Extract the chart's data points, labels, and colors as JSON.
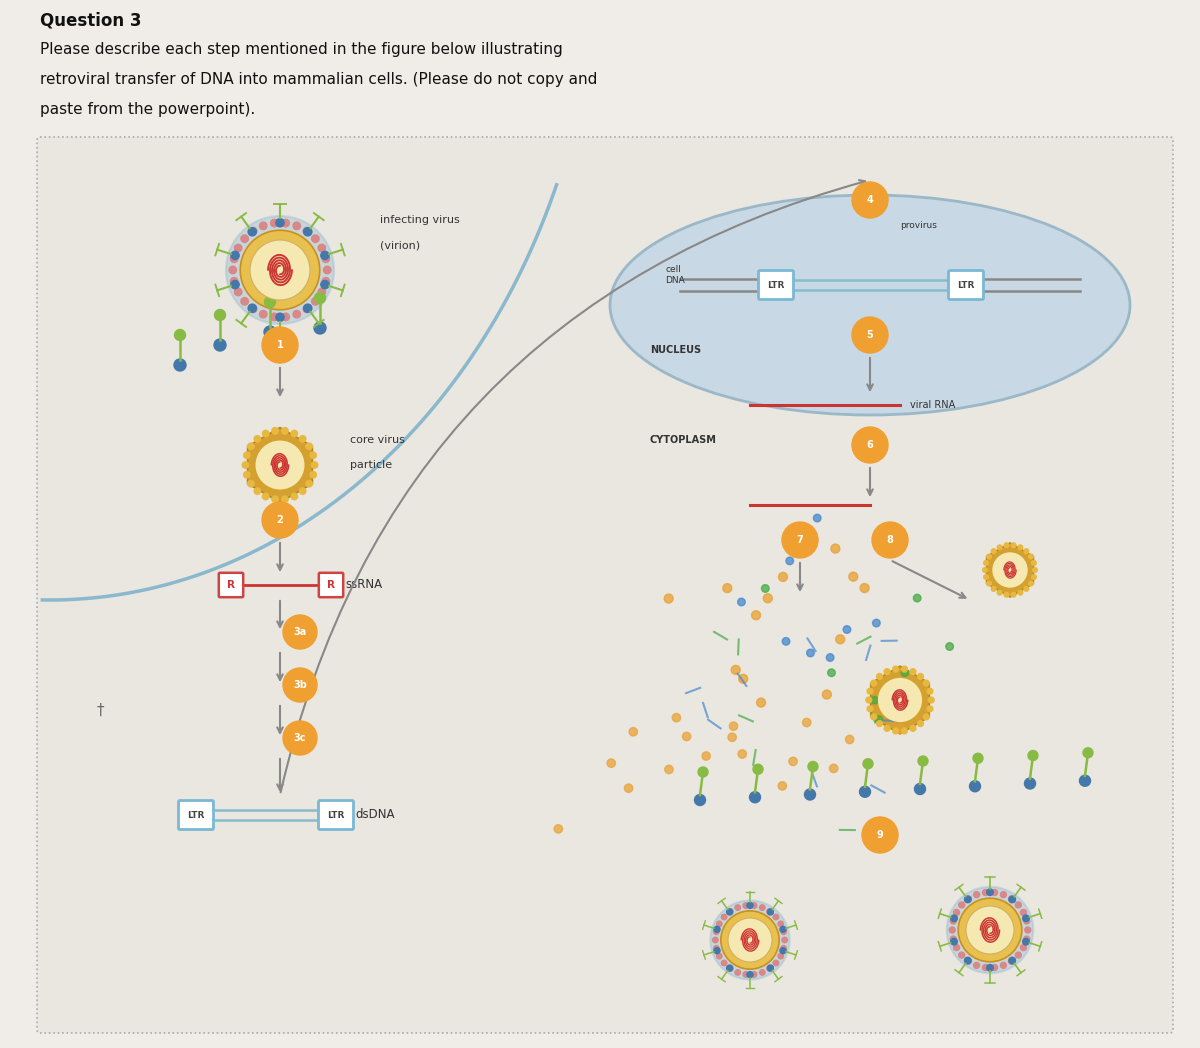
{
  "title_line1": "Question 3",
  "title_line2": "Please describe each step mentioned in the figure below illustrating",
  "title_line3": "retroviral transfer of DNA into mammalian cells. (Please do not copy and",
  "title_line4": "paste from the powerpoint).",
  "page_bg": "#f0ede8",
  "diagram_bg": "#eae6e0",
  "outer_border_color": "#aaaaaa",
  "cell_membrane_color": "#8ab8cc",
  "nucleus_fill": "#c8d8e4",
  "nucleus_edge": "#9ab8c8",
  "step_circle_color": "#f0a030",
  "arrow_color": "#888888",
  "virion_outer_color": "#8ab8cc",
  "virion_bead_color": "#d88888",
  "virion_spike_color": "#88bb44",
  "virion_membrane_color": "#e8c050",
  "virion_core_color": "#f5e8b0",
  "virion_rna_color": "#cc3333",
  "core_hex_color": "#d4a030",
  "core_hex_bead": "#e8b840",
  "ssrna_line_color": "#cc3333",
  "ltr_box_color": "#7ab8d4",
  "ltr_line_color": "#88bbcc",
  "r_box_color": "#cc4444",
  "text_color": "#333333",
  "label_font_size": 8.5,
  "step_font_size": 7.0
}
